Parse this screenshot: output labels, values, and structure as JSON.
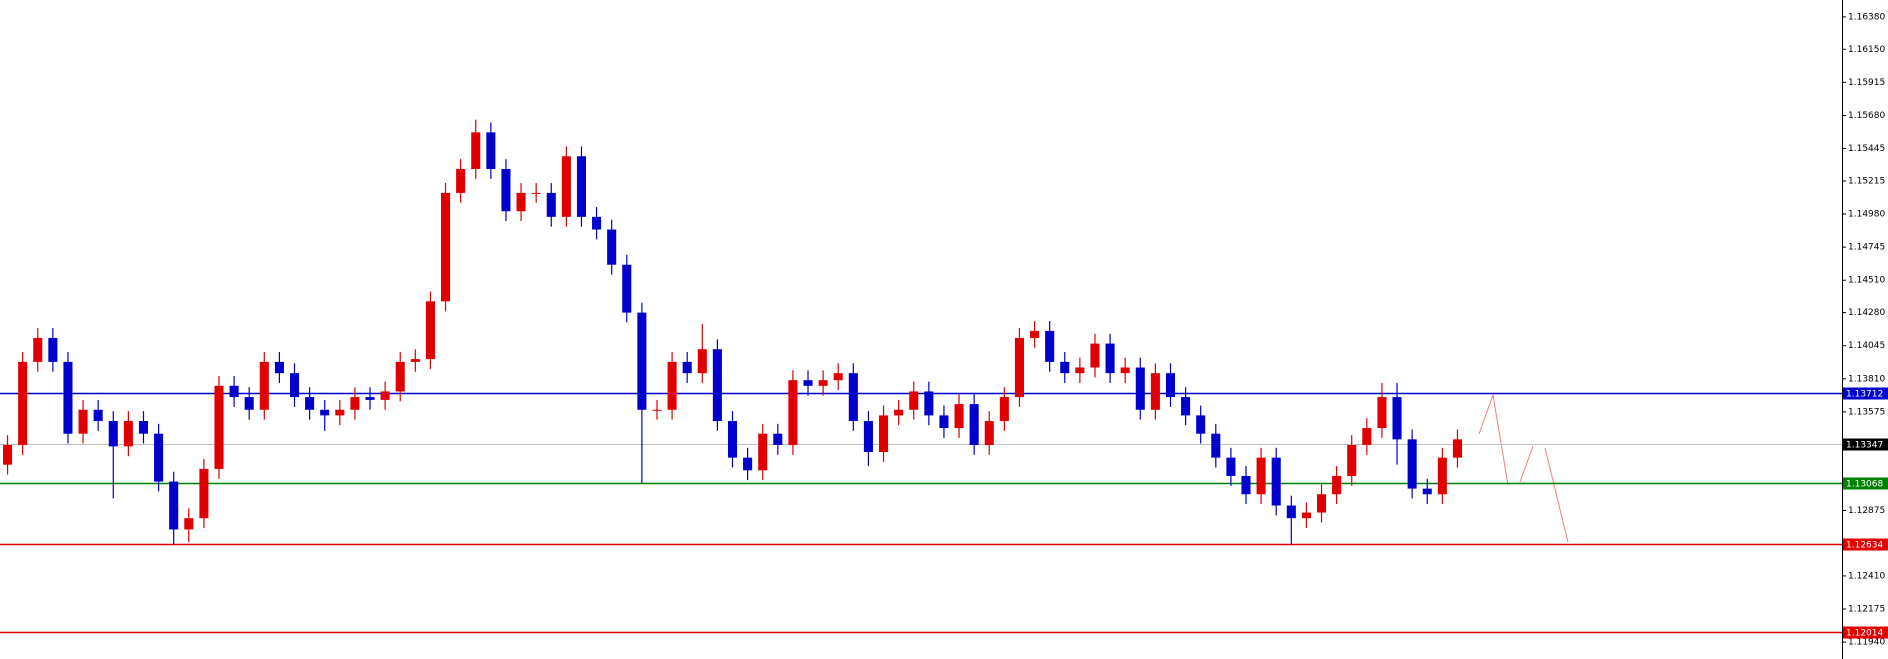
{
  "chart_data": {
    "type": "candlestick",
    "ylim": [
      1.1182,
      1.165
    ],
    "yticks": [
      {
        "value": 1.1638,
        "label": "1.16380"
      },
      {
        "value": 1.1615,
        "label": "1.16150"
      },
      1.15915,
      {
        "value": 1.1568,
        "label": "1.15680"
      },
      1.15445,
      1.15215,
      {
        "value": 1.1498,
        "label": "1.14980"
      },
      1.14745,
      {
        "value": 1.1451,
        "label": "1.14510"
      },
      {
        "value": 1.1428,
        "label": "1.14280"
      },
      1.14045,
      {
        "value": 1.1381,
        "label": "1.13810"
      },
      1.13575,
      1.12875,
      {
        "value": 1.1241,
        "label": "1.12410"
      },
      1.12175,
      {
        "value": 1.1194,
        "label": "1.11940"
      }
    ],
    "levels": [
      {
        "value": 1.13712,
        "color": "#0000cc"
      },
      {
        "value": 1.13347,
        "color": "#c0c0c0"
      },
      {
        "value": 1.13068,
        "color": "#008000"
      },
      {
        "value": 1.12634,
        "color": "#e00000"
      },
      {
        "value": 1.12014,
        "color": "#e00000"
      }
    ],
    "up_color": "#e00000",
    "down_color": "#0000cc",
    "open": [
      1.132,
      1.1334,
      1.1393,
      1.141,
      1.1393,
      1.1342,
      1.1359,
      1.1351,
      1.1333,
      1.1351,
      1.1342,
      1.1308,
      1.1274,
      1.1282,
      1.1317,
      1.1376,
      1.1368,
      1.1359,
      1.1393,
      1.1385,
      1.1368,
      1.1359,
      1.1355,
      1.1359,
      1.1368,
      1.1366,
      1.1372,
      1.1393,
      1.1395,
      1.1436,
      1.1513,
      1.153,
      1.1556,
      1.153,
      1.15,
      1.1513,
      1.1513,
      1.1496,
      1.1539,
      1.1496,
      1.1487,
      1.1462,
      1.1428,
      1.1359,
      1.1359,
      1.1393,
      1.1385,
      1.1402,
      1.1351,
      1.1325,
      1.1316,
      1.1342,
      1.1334,
      1.138,
      1.1376,
      1.138,
      1.1385,
      1.1351,
      1.1329,
      1.1355,
      1.1359,
      1.1372,
      1.1355,
      1.1346,
      1.1363,
      1.1334,
      1.1351,
      1.1368,
      1.141,
      1.1415,
      1.1393,
      1.1385,
      1.1389,
      1.1406,
      1.1385,
      1.1389,
      1.1359,
      1.1385,
      1.1368,
      1.1355,
      1.1342,
      1.1325,
      1.1312,
      1.1299,
      1.1325,
      1.1291,
      1.1282,
      1.1286,
      1.1299,
      1.1312,
      1.1334,
      1.1346,
      1.1368,
      1.1338,
      1.1303,
      1.1299,
      1.1325
    ],
    "high": [
      1.1341,
      1.14,
      1.1417,
      1.1417,
      1.14,
      1.1366,
      1.1366,
      1.1358,
      1.1358,
      1.1358,
      1.1349,
      1.1315,
      1.1289,
      1.1324,
      1.1383,
      1.1383,
      1.1375,
      1.14,
      1.14,
      1.1392,
      1.1375,
      1.1366,
      1.1366,
      1.1375,
      1.1375,
      1.1379,
      1.14,
      1.1402,
      1.1443,
      1.152,
      1.1537,
      1.1565,
      1.1563,
      1.1537,
      1.152,
      1.152,
      1.152,
      1.1546,
      1.1546,
      1.1503,
      1.1494,
      1.1469,
      1.1435,
      1.1366,
      1.14,
      1.14,
      1.142,
      1.1409,
      1.1358,
      1.1332,
      1.1349,
      1.1349,
      1.1387,
      1.1387,
      1.1387,
      1.1392,
      1.1392,
      1.1358,
      1.1362,
      1.1366,
      1.1379,
      1.1379,
      1.1362,
      1.137,
      1.137,
      1.1358,
      1.1375,
      1.1417,
      1.1422,
      1.1422,
      1.14,
      1.1396,
      1.1413,
      1.1413,
      1.1396,
      1.1396,
      1.1392,
      1.1392,
      1.1375,
      1.1362,
      1.1349,
      1.1332,
      1.1319,
      1.1332,
      1.1332,
      1.1298,
      1.1293,
      1.1306,
      1.1319,
      1.1341,
      1.1353,
      1.1378,
      1.1378,
      1.1345,
      1.131,
      1.1332,
      1.1345
    ],
    "low": [
      1.1313,
      1.1327,
      1.1386,
      1.1386,
      1.1335,
      1.1335,
      1.1344,
      1.1296,
      1.1326,
      1.1335,
      1.1301,
      1.1263,
      1.1265,
      1.1275,
      1.131,
      1.1361,
      1.1352,
      1.1352,
      1.1378,
      1.1361,
      1.1352,
      1.1344,
      1.1348,
      1.1352,
      1.1359,
      1.1359,
      1.1365,
      1.1386,
      1.1388,
      1.1429,
      1.1506,
      1.1523,
      1.1523,
      1.1493,
      1.1493,
      1.1506,
      1.1489,
      1.1489,
      1.1489,
      1.148,
      1.1455,
      1.1421,
      1.1307,
      1.1352,
      1.1352,
      1.1378,
      1.1378,
      1.1344,
      1.1318,
      1.1309,
      1.1309,
      1.1327,
      1.1327,
      1.1369,
      1.1369,
      1.1373,
      1.1344,
      1.1319,
      1.1322,
      1.1348,
      1.1352,
      1.1348,
      1.1339,
      1.1339,
      1.1327,
      1.1327,
      1.1344,
      1.1361,
      1.1403,
      1.1386,
      1.1378,
      1.1378,
      1.1382,
      1.1378,
      1.1378,
      1.1352,
      1.1352,
      1.1361,
      1.1348,
      1.1335,
      1.1318,
      1.1305,
      1.1292,
      1.1292,
      1.1284,
      1.1263,
      1.1275,
      1.1279,
      1.1292,
      1.1305,
      1.1327,
      1.1339,
      1.132,
      1.1296,
      1.1292,
      1.1292,
      1.1318
    ],
    "close": [
      1.1334,
      1.1393,
      1.141,
      1.1393,
      1.1342,
      1.1359,
      1.1351,
      1.1333,
      1.1351,
      1.1342,
      1.1308,
      1.1274,
      1.1282,
      1.1317,
      1.1376,
      1.1368,
      1.1359,
      1.1393,
      1.1385,
      1.1368,
      1.1359,
      1.1355,
      1.1359,
      1.1368,
      1.1366,
      1.1372,
      1.1393,
      1.1395,
      1.1436,
      1.1513,
      1.153,
      1.1556,
      1.153,
      1.15,
      1.1513,
      1.1513,
      1.1496,
      1.1539,
      1.1496,
      1.1487,
      1.1462,
      1.1428,
      1.1359,
      1.1359,
      1.1393,
      1.1385,
      1.1402,
      1.1351,
      1.1325,
      1.1316,
      1.1342,
      1.1334,
      1.138,
      1.1376,
      1.138,
      1.1385,
      1.1351,
      1.1329,
      1.1355,
      1.1359,
      1.1372,
      1.1355,
      1.1346,
      1.1363,
      1.1334,
      1.1351,
      1.1368,
      1.141,
      1.1415,
      1.1393,
      1.1385,
      1.1389,
      1.1406,
      1.1385,
      1.1389,
      1.1359,
      1.1385,
      1.1368,
      1.1355,
      1.1342,
      1.1325,
      1.1312,
      1.1299,
      1.1325,
      1.1291,
      1.1282,
      1.1286,
      1.1299,
      1.1312,
      1.1334,
      1.1346,
      1.1368,
      1.1338,
      1.1303,
      1.1299,
      1.1325,
      1.1338
    ]
  }
}
